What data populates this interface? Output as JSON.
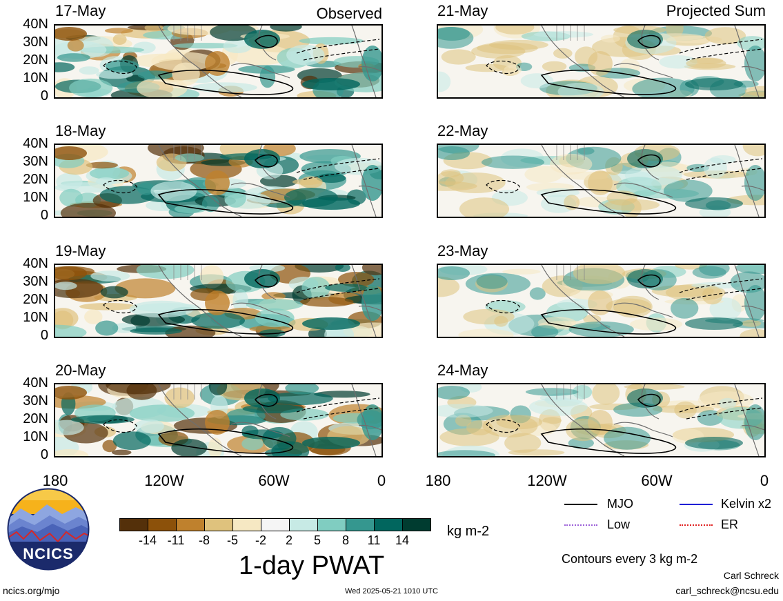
{
  "header": {
    "left_label": "Observed",
    "right_label": "Projected Sum"
  },
  "panels_left": [
    {
      "date": "17-May"
    },
    {
      "date": "18-May"
    },
    {
      "date": "19-May"
    },
    {
      "date": "20-May"
    }
  ],
  "panels_right": [
    {
      "date": "21-May"
    },
    {
      "date": "22-May"
    },
    {
      "date": "23-May"
    },
    {
      "date": "24-May"
    }
  ],
  "y_ticks": [
    "40N",
    "30N",
    "20N",
    "10N",
    "0"
  ],
  "x_ticks": [
    "180",
    "120W",
    "60W",
    "0"
  ],
  "colorbar": {
    "labels": [
      "-14",
      "-11",
      "-8",
      "-5",
      "-2",
      "2",
      "5",
      "8",
      "11",
      "14"
    ],
    "colors": [
      "#54300a",
      "#8c510a",
      "#bf812d",
      "#dfc27d",
      "#f6e8c3",
      "#f5f5f5",
      "#c7eae5",
      "#80cdc1",
      "#35978f",
      "#01665e",
      "#003c30"
    ],
    "units": "kg m-2",
    "title": "1-day PWAT"
  },
  "legend": {
    "items": [
      {
        "label": "MJO",
        "color": "#000000"
      },
      {
        "label": "Kelvin x2",
        "color": "#1f1fd6"
      },
      {
        "label": "Low",
        "color": "#9b5fd8"
      },
      {
        "label": "ER",
        "color": "#e02020"
      }
    ],
    "contours_note": "Contours every 3 kg m-2"
  },
  "footer": {
    "logo_text": "NCICS",
    "site": "ncics.org/mjo",
    "timestamp": "Wed 2025-05-21 1010 UTC",
    "author": "Carl Schreck",
    "email": "carl_schreck@ncsu.edu"
  }
}
